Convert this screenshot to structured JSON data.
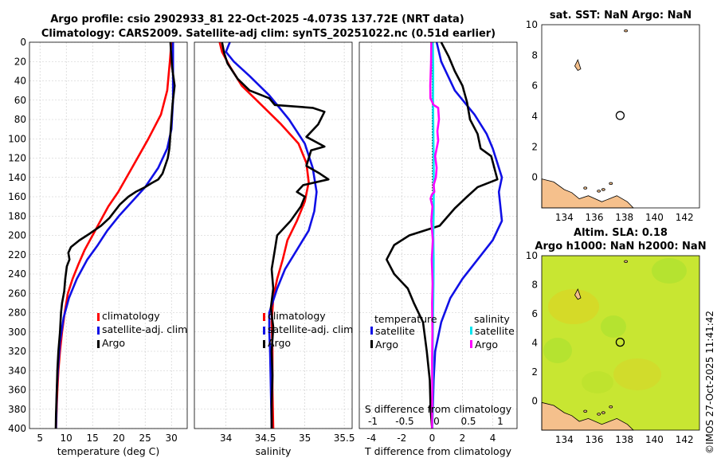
{
  "header": {
    "title_line1": "Argo profile: csio 2902933_81 22-Oct-2025 -4.073S 137.72E (NRT data)",
    "title_line2": "Climatology: CARS2009. Satellite-adj clim: synTS_20251022.nc (0.51d earlier)"
  },
  "footer": {
    "stamp": "©IMOS 27-Oct-2025 11:41:42"
  },
  "colors": {
    "climatology": "#ff0000",
    "satellite": "#1010e6",
    "argo": "#000000",
    "sal_satellite": "#00e5ee",
    "sal_argo": "#ff00ff",
    "land": "#f5c08c",
    "sla_bg": "#c8e632"
  },
  "chart_data": [
    {
      "type": "line",
      "name": "temperature-profile",
      "xlabel": "temperature (deg C)",
      "ylabel": "",
      "xlim": [
        3,
        33
      ],
      "ylim": [
        0,
        400
      ],
      "y_reversed": true,
      "xticks": [
        5,
        10,
        15,
        20,
        25,
        30
      ],
      "yticks": [
        0,
        20,
        40,
        60,
        80,
        100,
        120,
        140,
        160,
        180,
        200,
        220,
        240,
        260,
        280,
        300,
        320,
        340,
        360,
        380,
        400
      ],
      "legend": [
        "climatology",
        "satellite-adj. clim",
        "Argo"
      ],
      "series": [
        {
          "name": "climatology",
          "color": "#ff0000",
          "x": [
            30.0,
            29.7,
            29.2,
            28.0,
            25.6,
            22.5,
            19.9,
            18.0,
            16.5,
            15.0,
            13.5,
            12.3,
            11.2,
            10.3,
            9.7,
            9.2,
            8.8,
            8.5,
            8.3,
            8.2,
            8.1,
            8.05
          ],
          "y": [
            0,
            20,
            50,
            75,
            100,
            130,
            155,
            170,
            185,
            200,
            215,
            230,
            245,
            260,
            280,
            300,
            320,
            340,
            360,
            375,
            390,
            400
          ]
        },
        {
          "name": "satellite-adj. clim",
          "color": "#1010e6",
          "x": [
            30.3,
            30.3,
            30.0,
            29.2,
            27.5,
            25.0,
            22.5,
            20.0,
            17.8,
            16.0,
            14.0,
            12.0,
            10.5,
            9.5,
            8.8,
            8.4,
            8.2,
            8.1,
            8.05
          ],
          "y": [
            0,
            60,
            90,
            110,
            130,
            150,
            165,
            180,
            195,
            210,
            225,
            245,
            265,
            285,
            310,
            340,
            360,
            385,
            400
          ]
        },
        {
          "name": "Argo",
          "color": "#000000",
          "x": [
            29.8,
            30.1,
            30.6,
            30.2,
            30.0,
            29.8,
            29.6,
            29.3,
            28.8,
            28.3,
            27.5,
            26.2,
            25.0,
            23.2,
            21.8,
            20.2,
            19.2,
            18.2,
            16.6,
            14.5,
            12.5,
            10.9,
            10.4,
            10.6,
            10.1,
            9.8,
            9.6,
            9.2,
            9.0,
            8.8,
            8.5,
            8.3,
            8.2,
            8.05,
            8.0
          ],
          "y": [
            0,
            25,
            45,
            65,
            80,
            95,
            110,
            120,
            128,
            136,
            142,
            146,
            150,
            155,
            160,
            168,
            175,
            182,
            190,
            198,
            205,
            212,
            218,
            225,
            232,
            245,
            258,
            270,
            280,
            300,
            320,
            340,
            360,
            385,
            400
          ]
        }
      ]
    },
    {
      "type": "line",
      "name": "salinity-profile",
      "xlabel": "salinity",
      "ylabel": "",
      "xlim": [
        33.6,
        35.6
      ],
      "ylim": [
        0,
        400
      ],
      "y_reversed": true,
      "xticks": [
        34,
        34.5,
        35,
        35.5
      ],
      "legend": [
        "climatology",
        "satellite-adj. clim",
        "Argo"
      ],
      "series": [
        {
          "name": "climatology",
          "color": "#ff0000",
          "x": [
            33.92,
            33.95,
            34.05,
            34.2,
            34.45,
            34.7,
            34.92,
            35.02,
            35.05,
            35.0,
            34.9,
            34.78,
            34.72,
            34.65,
            34.6,
            34.58,
            34.59,
            34.59,
            34.6
          ],
          "y": [
            0,
            10,
            25,
            45,
            65,
            85,
            105,
            125,
            145,
            165,
            185,
            205,
            225,
            245,
            265,
            290,
            320,
            360,
            400
          ]
        },
        {
          "name": "satellite-adj. clim",
          "color": "#1010e6",
          "x": [
            34.05,
            34.0,
            34.1,
            34.3,
            34.55,
            34.8,
            35.0,
            35.1,
            35.15,
            35.12,
            35.05,
            34.9,
            34.75,
            34.65,
            34.55,
            34.55,
            34.56,
            34.57,
            34.58
          ],
          "y": [
            0,
            10,
            20,
            35,
            55,
            80,
            105,
            130,
            155,
            175,
            195,
            215,
            235,
            255,
            280,
            300,
            320,
            360,
            400
          ]
        },
        {
          "name": "Argo",
          "color": "#000000",
          "x": [
            33.95,
            33.98,
            34.02,
            34.15,
            34.3,
            34.55,
            34.62,
            35.1,
            35.25,
            35.17,
            35.02,
            35.25,
            35.08,
            35.02,
            35.19,
            35.3,
            34.98,
            34.9,
            35.0,
            34.95,
            34.82,
            34.65,
            34.62,
            34.58,
            34.6,
            34.57,
            34.6,
            34.58,
            34.59,
            34.58,
            34.58
          ],
          "y": [
            0,
            12,
            22,
            38,
            50,
            58,
            65,
            68,
            72,
            85,
            98,
            108,
            112,
            128,
            136,
            142,
            148,
            155,
            160,
            170,
            185,
            200,
            215,
            235,
            255,
            275,
            295,
            320,
            345,
            375,
            400
          ]
        }
      ]
    },
    {
      "type": "line",
      "name": "difference-profile",
      "xlabel": "T difference from climatology",
      "xlabel_top": "S difference from climatology",
      "xlim": [
        -4.8,
        5.6
      ],
      "ylim": [
        0,
        400
      ],
      "y_reversed": true,
      "xticks": [
        -4,
        -2,
        0,
        2,
        4
      ],
      "xticks_top": [
        -1,
        -0.5,
        0,
        0.5,
        1
      ],
      "legend_temperature": {
        "title": "temperature",
        "entries": [
          "satellite",
          "Argo"
        ]
      },
      "legend_salinity": {
        "title": "salinity",
        "entries": [
          "satellite",
          "Argo"
        ]
      },
      "series": [
        {
          "name": "T satellite",
          "color": "#1010e6",
          "x": [
            0.3,
            0.6,
            1.5,
            2.8,
            3.6,
            4.0,
            4.3,
            4.6,
            4.4,
            4.5,
            4.6,
            4.0,
            3.0,
            2.0,
            1.2,
            0.6,
            0.2,
            0.1,
            0.05,
            0.0
          ],
          "y": [
            0,
            20,
            50,
            75,
            95,
            110,
            125,
            140,
            155,
            170,
            185,
            205,
            225,
            245,
            265,
            290,
            320,
            350,
            380,
            400
          ]
        },
        {
          "name": "T Argo",
          "color": "#000000",
          "x": [
            0.6,
            1.1,
            1.5,
            2.0,
            2.3,
            2.5,
            3.0,
            3.2,
            3.9,
            4.3,
            3.0,
            2.3,
            1.5,
            0.5,
            -1.5,
            -2.5,
            -3.0,
            -2.5,
            -1.6,
            -1.2,
            -0.6,
            -0.35,
            -0.15,
            -0.1,
            0.0
          ],
          "y": [
            0,
            15,
            30,
            45,
            62,
            80,
            95,
            110,
            118,
            142,
            150,
            160,
            172,
            190,
            200,
            210,
            225,
            240,
            255,
            270,
            290,
            320,
            350,
            380,
            400
          ]
        },
        {
          "name": "S satellite",
          "color": "#00e5ee",
          "x": [
            0.05,
            0.07,
            0.06,
            0.08,
            0.1,
            0.11,
            0.1,
            0.08,
            0.1,
            0.09,
            0.07,
            0.05,
            0.04,
            0.03,
            0.02
          ],
          "y": [
            0,
            30,
            60,
            90,
            120,
            150,
            175,
            200,
            225,
            250,
            275,
            300,
            330,
            360,
            400
          ]
        },
        {
          "name": "S Argo",
          "color": "#ff00ff",
          "x": [
            -0.05,
            -0.07,
            -0.1,
            -0.12,
            -0.11,
            0.1,
            0.4,
            0.45,
            0.35,
            0.4,
            0.2,
            0.3,
            0.25,
            0.1,
            0.15,
            -0.02,
            -0.1,
            0.02,
            -0.05,
            0.05,
            -0.02,
            0.03,
            0.0,
            0.02,
            0.0,
            0.01,
            0.0
          ],
          "y": [
            0,
            20,
            35,
            45,
            58,
            65,
            68,
            80,
            92,
            102,
            118,
            130,
            140,
            148,
            155,
            158,
            162,
            170,
            185,
            205,
            225,
            250,
            270,
            300,
            330,
            360,
            400
          ]
        }
      ]
    },
    {
      "type": "map",
      "name": "sst-map",
      "title": "sat. SST: NaN Argo: NaN",
      "xlim": [
        132.5,
        143
      ],
      "ylim": [
        -2,
        10
      ],
      "xticks": [
        134,
        136,
        138,
        140,
        142
      ],
      "yticks": [
        0,
        2,
        4,
        6,
        8,
        10
      ],
      "marker": {
        "lon": 137.72,
        "lat": 4.05
      }
    },
    {
      "type": "map",
      "name": "sla-map",
      "title": "Altim. SLA: 0.18",
      "subtitle": "Argo h1000: NaN h2000: NaN",
      "xlim": [
        132.5,
        143
      ],
      "ylim": [
        -2,
        10
      ],
      "xticks": [
        134,
        136,
        138,
        140,
        142
      ],
      "yticks": [
        0,
        2,
        4,
        6,
        8,
        10
      ],
      "marker": {
        "lon": 137.72,
        "lat": 4.05
      }
    }
  ]
}
